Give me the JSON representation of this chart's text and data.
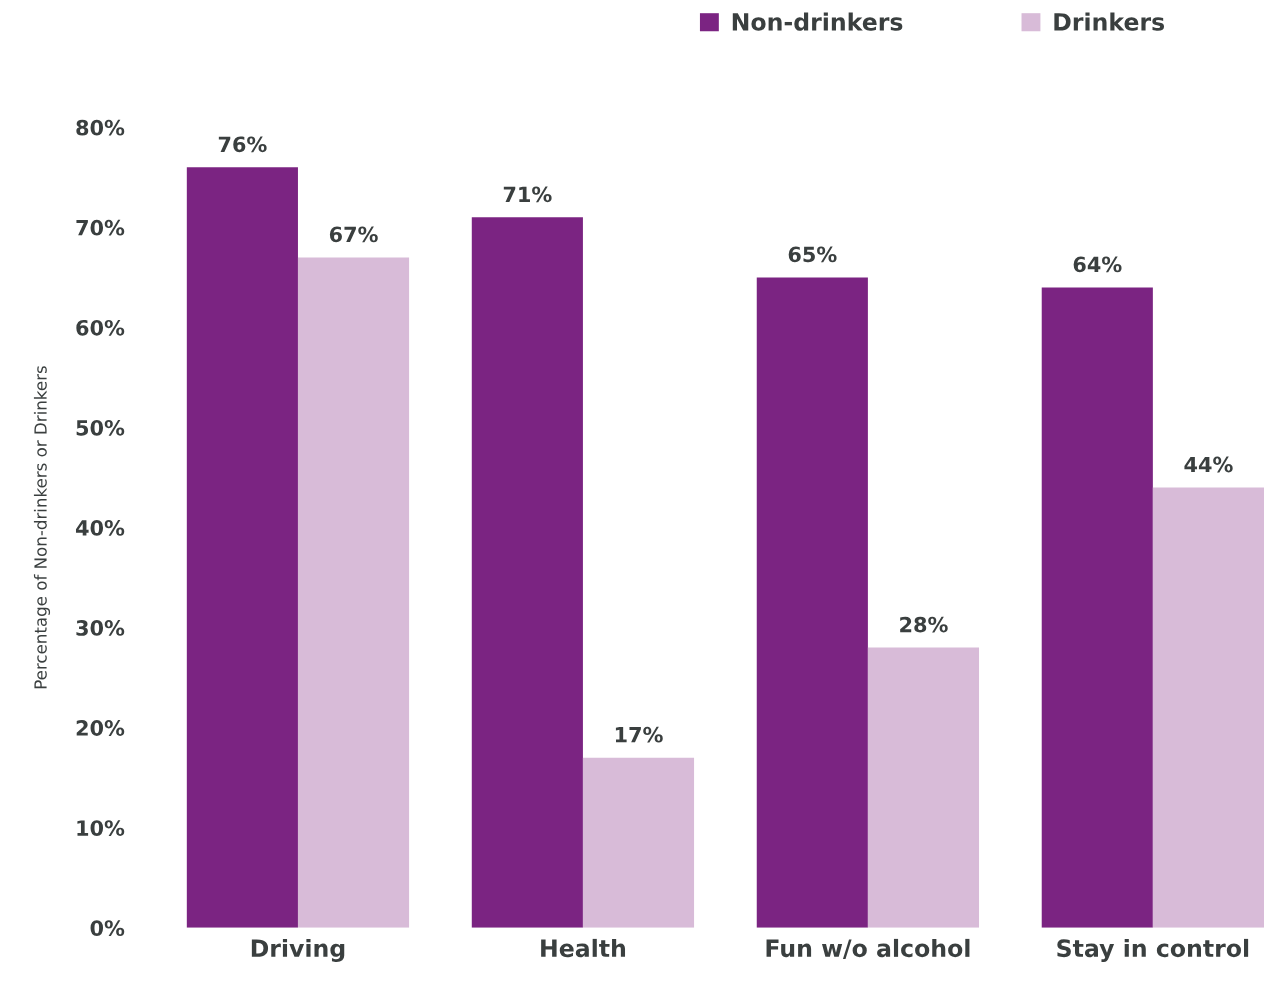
{
  "chart_data": {
    "type": "bar",
    "ylabel": "Percentage of Non-drinkers or Drinkers",
    "categories": [
      "Driving",
      "Health",
      "Fun w/o alcohol",
      "Stay in control"
    ],
    "series": [
      {
        "name": "Non-drinkers",
        "color": "#7b2482",
        "values": [
          76,
          71,
          65,
          64
        ],
        "value_labels": [
          "76%",
          "71%",
          "65%",
          "64%"
        ]
      },
      {
        "name": "Drinkers",
        "color": "#d8bbd8",
        "values": [
          67,
          17,
          28,
          44
        ],
        "value_labels": [
          "67%",
          "17%",
          "28%",
          "44%"
        ]
      }
    ],
    "ylim": [
      0,
      80
    ],
    "yticks": [
      {
        "value": 0,
        "label": "0%"
      },
      {
        "value": 10,
        "label": "10%"
      },
      {
        "value": 20,
        "label": "20%"
      },
      {
        "value": 30,
        "label": "30%"
      },
      {
        "value": 40,
        "label": "40%"
      },
      {
        "value": 50,
        "label": "50%"
      },
      {
        "value": 60,
        "label": "60%"
      },
      {
        "value": 70,
        "label": "70%"
      },
      {
        "value": 80,
        "label": "80%"
      }
    ],
    "legend": "top right",
    "grid": false
  }
}
